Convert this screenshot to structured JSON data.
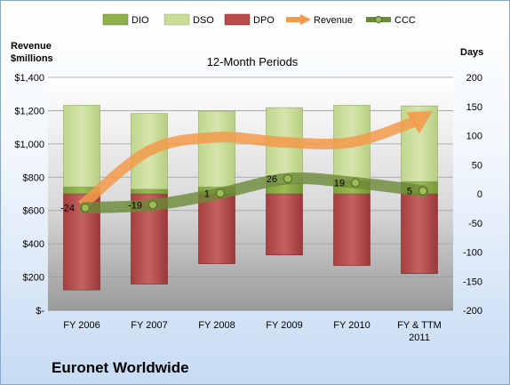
{
  "company": "Euronet Worldwide",
  "chart_data": {
    "type": "bar",
    "subtitle": "12-Month Periods",
    "left_axis_label_line1": "Revenue",
    "left_axis_label_line2": "$millions",
    "right_axis_label": "Days",
    "categories": [
      [
        "FY 2006"
      ],
      [
        "FY 2007"
      ],
      [
        "FY 2008"
      ],
      [
        "FY 2009"
      ],
      [
        "FY 2010"
      ],
      [
        "FY & TTM",
        "2011"
      ]
    ],
    "left_ylim": [
      0,
      1400
    ],
    "left_ticks": [
      0,
      200,
      400,
      600,
      800,
      1000,
      1200,
      1400
    ],
    "left_tick_labels": [
      "$-",
      "$200",
      "$400",
      "$600",
      "$800",
      "$1,000",
      "$1,200",
      "$1,400"
    ],
    "right_ylim": [
      -200,
      200
    ],
    "right_ticks": [
      -200,
      -150,
      -100,
      -50,
      0,
      50,
      100,
      150,
      200
    ],
    "legend": [
      "DIO",
      "DSO",
      "DPO",
      "Revenue",
      "CCC"
    ],
    "legend_position": "top",
    "series": [
      {
        "name": "DIO",
        "axis": "right",
        "values": [
          12,
          8,
          12,
          18,
          22,
          21
        ],
        "color": "#8fb04a"
      },
      {
        "name": "DSO",
        "axis": "right",
        "values": [
          140,
          130,
          130,
          130,
          130,
          130
        ],
        "color": "#c9dc98"
      },
      {
        "name": "DPO",
        "axis": "right",
        "values": [
          -165,
          -155,
          -120,
          -105,
          -123,
          -137
        ],
        "color": "#b94b4b"
      },
      {
        "name": "Revenue",
        "axis": "left",
        "values": [
          630,
          960,
          1040,
          1010,
          1010,
          1150
        ],
        "color": "#f39a4a"
      },
      {
        "name": "CCC",
        "axis": "right",
        "values": [
          -24,
          -19,
          1,
          26,
          19,
          5
        ],
        "labels": [
          "-24",
          "-19",
          "1",
          "26",
          "19",
          "5"
        ],
        "color": "#6b8a36"
      }
    ]
  }
}
